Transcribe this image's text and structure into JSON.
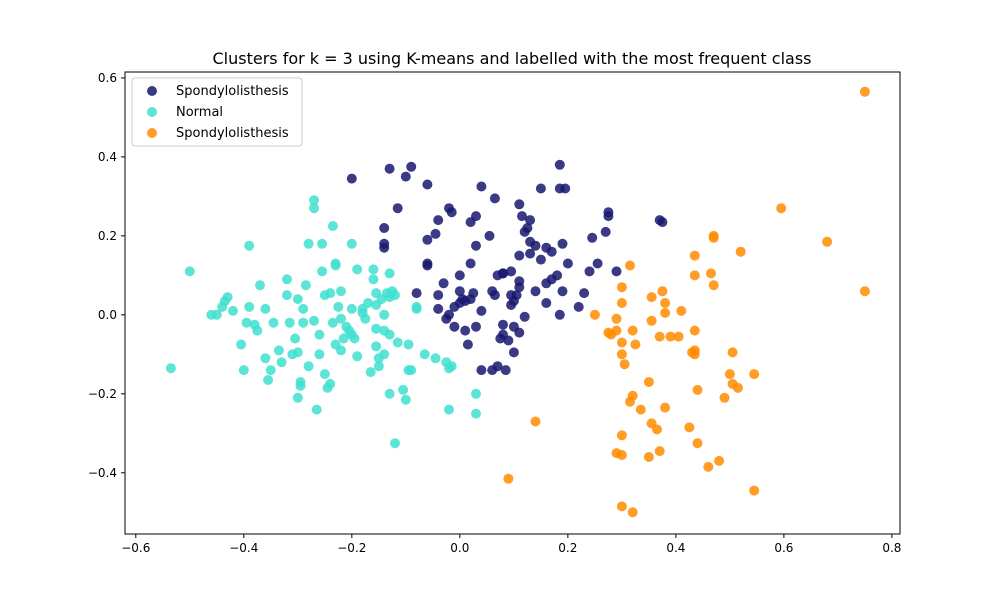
{
  "chart_data": {
    "type": "scatter",
    "title": "Clusters for k = 3 using K-means and labelled with the most frequent class",
    "xlabel": "",
    "ylabel": "",
    "xlim": [
      -0.6,
      0.8
    ],
    "ylim": [
      -0.5,
      0.6
    ],
    "xticks": [
      "−0.6",
      "−0.4",
      "−0.2",
      "0.0",
      "0.2",
      "0.4",
      "0.6",
      "0.8"
    ],
    "yticks": [
      "−0.4",
      "−0.2",
      "0.0",
      "0.2",
      "0.4",
      "0.6"
    ],
    "xtick_values": [
      -0.6,
      -0.4,
      -0.2,
      0.0,
      0.2,
      0.4,
      0.6,
      0.8
    ],
    "ytick_values": [
      -0.4,
      -0.2,
      0.0,
      0.2,
      0.4,
      0.6
    ],
    "grid": false,
    "legend_position": "top-left",
    "series": [
      {
        "name": "Spondylolisthesis",
        "color": "#191970",
        "points": [
          [
            -0.2,
            0.345
          ],
          [
            -0.13,
            0.37
          ],
          [
            -0.1,
            0.35
          ],
          [
            -0.09,
            0.375
          ],
          [
            -0.06,
            0.33
          ],
          [
            -0.14,
            0.22
          ],
          [
            -0.14,
            0.18
          ],
          [
            -0.14,
            0.17
          ],
          [
            -0.115,
            0.27
          ],
          [
            -0.06,
            0.19
          ],
          [
            -0.045,
            0.205
          ],
          [
            -0.04,
            0.24
          ],
          [
            -0.02,
            0.27
          ],
          [
            -0.015,
            0.26
          ],
          [
            -0.08,
            0.055
          ],
          [
            -0.06,
            0.125
          ],
          [
            -0.06,
            0.13
          ],
          [
            -0.04,
            0.05
          ],
          [
            -0.03,
            0.08
          ],
          [
            -0.04,
            0.015
          ],
          [
            -0.02,
            0.0
          ],
          [
            -0.025,
            -0.01
          ],
          [
            -0.01,
            0.02
          ],
          [
            0.0,
            0.03
          ],
          [
            0.0,
            0.06
          ],
          [
            0.0,
            0.1
          ],
          [
            0.005,
            0.04
          ],
          [
            0.01,
            0.035
          ],
          [
            0.02,
            0.04
          ],
          [
            0.025,
            0.055
          ],
          [
            0.02,
            0.13
          ],
          [
            0.03,
            0.175
          ],
          [
            0.02,
            0.235
          ],
          [
            0.03,
            0.25
          ],
          [
            0.04,
            0.325
          ],
          [
            0.065,
            0.295
          ],
          [
            0.055,
            0.2
          ],
          [
            0.06,
            0.06
          ],
          [
            0.07,
            0.1
          ],
          [
            0.08,
            0.105
          ],
          [
            0.065,
            0.05
          ],
          [
            0.08,
            0.105
          ],
          [
            0.095,
            0.11
          ],
          [
            0.03,
            -0.03
          ],
          [
            0.01,
            -0.04
          ],
          [
            -0.01,
            -0.03
          ],
          [
            0.015,
            -0.075
          ],
          [
            0.04,
            -0.14
          ],
          [
            0.07,
            -0.13
          ],
          [
            0.085,
            -0.14
          ],
          [
            0.06,
            -0.14
          ],
          [
            0.075,
            -0.06
          ],
          [
            0.09,
            -0.065
          ],
          [
            0.08,
            -0.025
          ],
          [
            0.1,
            -0.03
          ],
          [
            0.08,
            -0.05
          ],
          [
            0.1,
            -0.095
          ],
          [
            0.11,
            -0.045
          ],
          [
            0.12,
            -0.005
          ],
          [
            0.095,
            0.05
          ],
          [
            0.105,
            0.05
          ],
          [
            0.11,
            0.07
          ],
          [
            0.11,
            0.085
          ],
          [
            0.095,
            0.025
          ],
          [
            0.11,
            0.15
          ],
          [
            0.12,
            0.21
          ],
          [
            0.125,
            0.22
          ],
          [
            0.115,
            0.25
          ],
          [
            0.11,
            0.28
          ],
          [
            0.13,
            0.24
          ],
          [
            0.13,
            0.185
          ],
          [
            0.14,
            0.175
          ],
          [
            0.13,
            0.155
          ],
          [
            0.16,
            0.17
          ],
          [
            0.17,
            0.16
          ],
          [
            0.15,
            0.14
          ],
          [
            0.15,
            0.32
          ],
          [
            0.185,
            0.38
          ],
          [
            0.195,
            0.32
          ],
          [
            0.185,
            0.32
          ],
          [
            0.19,
            0.18
          ],
          [
            0.2,
            0.13
          ],
          [
            0.18,
            0.1
          ],
          [
            0.17,
            0.09
          ],
          [
            0.16,
            0.08
          ],
          [
            0.14,
            0.06
          ],
          [
            0.16,
            0.03
          ],
          [
            0.19,
            0.06
          ],
          [
            0.185,
            0.0
          ],
          [
            0.22,
            0.02
          ],
          [
            0.23,
            0.055
          ],
          [
            0.24,
            0.11
          ],
          [
            0.245,
            0.195
          ],
          [
            0.255,
            0.13
          ],
          [
            0.27,
            0.21
          ],
          [
            0.275,
            0.25
          ],
          [
            0.275,
            0.26
          ],
          [
            0.29,
            0.11
          ],
          [
            0.37,
            0.24
          ],
          [
            0.375,
            0.235
          ],
          [
            0.1,
            0.035
          ],
          [
            0.04,
            0.01
          ]
        ]
      },
      {
        "name": "Normal",
        "color": "#40e0d0",
        "points": [
          [
            -0.5,
            0.11
          ],
          [
            -0.535,
            -0.135
          ],
          [
            -0.46,
            0.0
          ],
          [
            -0.45,
            0.0
          ],
          [
            -0.44,
            0.02
          ],
          [
            -0.435,
            0.035
          ],
          [
            -0.43,
            0.045
          ],
          [
            -0.42,
            0.01
          ],
          [
            -0.405,
            -0.075
          ],
          [
            -0.4,
            -0.14
          ],
          [
            -0.395,
            -0.02
          ],
          [
            -0.39,
            0.02
          ],
          [
            -0.38,
            -0.025
          ],
          [
            -0.375,
            -0.04
          ],
          [
            -0.39,
            0.175
          ],
          [
            -0.37,
            0.075
          ],
          [
            -0.36,
            0.015
          ],
          [
            -0.36,
            -0.11
          ],
          [
            -0.355,
            -0.165
          ],
          [
            -0.35,
            -0.14
          ],
          [
            -0.345,
            -0.02
          ],
          [
            -0.335,
            -0.09
          ],
          [
            -0.33,
            -0.12
          ],
          [
            -0.32,
            0.05
          ],
          [
            -0.32,
            0.09
          ],
          [
            -0.315,
            -0.02
          ],
          [
            -0.31,
            -0.1
          ],
          [
            -0.305,
            -0.06
          ],
          [
            -0.3,
            0.04
          ],
          [
            -0.3,
            -0.095
          ],
          [
            -0.3,
            -0.21
          ],
          [
            -0.295,
            -0.17
          ],
          [
            -0.295,
            -0.18
          ],
          [
            -0.29,
            0.015
          ],
          [
            -0.29,
            -0.02
          ],
          [
            -0.285,
            0.075
          ],
          [
            -0.28,
            0.18
          ],
          [
            -0.28,
            -0.13
          ],
          [
            -0.27,
            0.27
          ],
          [
            -0.27,
            0.29
          ],
          [
            -0.27,
            -0.015
          ],
          [
            -0.265,
            -0.24
          ],
          [
            -0.26,
            -0.05
          ],
          [
            -0.26,
            -0.1
          ],
          [
            -0.255,
            0.11
          ],
          [
            -0.255,
            0.18
          ],
          [
            -0.25,
            0.05
          ],
          [
            -0.25,
            -0.15
          ],
          [
            -0.245,
            -0.185
          ],
          [
            -0.24,
            0.055
          ],
          [
            -0.24,
            -0.175
          ],
          [
            -0.235,
            0.225
          ],
          [
            -0.235,
            -0.02
          ],
          [
            -0.23,
            0.13
          ],
          [
            -0.23,
            0.125
          ],
          [
            -0.23,
            -0.075
          ],
          [
            -0.225,
            0.02
          ],
          [
            -0.22,
            0.06
          ],
          [
            -0.22,
            -0.01
          ],
          [
            -0.22,
            -0.09
          ],
          [
            -0.215,
            -0.06
          ],
          [
            -0.21,
            -0.03
          ],
          [
            -0.205,
            -0.04
          ],
          [
            -0.2,
            0.18
          ],
          [
            -0.2,
            0.015
          ],
          [
            -0.2,
            -0.05
          ],
          [
            -0.195,
            -0.06
          ],
          [
            -0.19,
            0.115
          ],
          [
            -0.19,
            -0.105
          ],
          [
            -0.18,
            0.005
          ],
          [
            -0.18,
            0.015
          ],
          [
            -0.175,
            -0.01
          ],
          [
            -0.17,
            0.03
          ],
          [
            -0.165,
            -0.145
          ],
          [
            -0.16,
            0.115
          ],
          [
            -0.16,
            0.09
          ],
          [
            -0.155,
            0.055
          ],
          [
            -0.155,
            0.025
          ],
          [
            -0.155,
            -0.035
          ],
          [
            -0.155,
            -0.08
          ],
          [
            -0.15,
            -0.11
          ],
          [
            -0.15,
            -0.13
          ],
          [
            -0.145,
            0.04
          ],
          [
            -0.14,
            0.0
          ],
          [
            -0.14,
            -0.04
          ],
          [
            -0.14,
            -0.1
          ],
          [
            -0.135,
            0.055
          ],
          [
            -0.13,
            0.105
          ],
          [
            -0.13,
            0.045
          ],
          [
            -0.13,
            -0.05
          ],
          [
            -0.13,
            -0.2
          ],
          [
            -0.125,
            0.06
          ],
          [
            -0.12,
            0.05
          ],
          [
            -0.12,
            -0.325
          ],
          [
            -0.115,
            -0.07
          ],
          [
            -0.105,
            -0.19
          ],
          [
            -0.1,
            -0.215
          ],
          [
            -0.095,
            -0.075
          ],
          [
            -0.09,
            -0.14
          ],
          [
            -0.08,
            0.015
          ],
          [
            -0.08,
            0.02
          ],
          [
            -0.065,
            -0.1
          ],
          [
            -0.045,
            -0.11
          ],
          [
            -0.025,
            -0.12
          ],
          [
            -0.02,
            -0.135
          ],
          [
            -0.02,
            -0.24
          ],
          [
            -0.015,
            -0.13
          ],
          [
            0.03,
            -0.2
          ],
          [
            0.03,
            -0.25
          ],
          [
            -0.095,
            -0.14
          ]
        ]
      },
      {
        "name": "Spondylolisthesis",
        "color": "#ff8c00",
        "points": [
          [
            0.75,
            0.565
          ],
          [
            0.75,
            0.06
          ],
          [
            0.68,
            0.185
          ],
          [
            0.595,
            0.27
          ],
          [
            0.52,
            0.16
          ],
          [
            0.505,
            -0.095
          ],
          [
            0.5,
            -0.15
          ],
          [
            0.505,
            -0.175
          ],
          [
            0.515,
            -0.185
          ],
          [
            0.545,
            -0.15
          ],
          [
            0.545,
            -0.445
          ],
          [
            0.49,
            -0.21
          ],
          [
            0.47,
            0.2
          ],
          [
            0.47,
            0.195
          ],
          [
            0.47,
            0.075
          ],
          [
            0.465,
            0.105
          ],
          [
            0.435,
            0.15
          ],
          [
            0.435,
            0.1
          ],
          [
            0.435,
            -0.04
          ],
          [
            0.435,
            -0.09
          ],
          [
            0.435,
            -0.1
          ],
          [
            0.43,
            -0.095
          ],
          [
            0.44,
            -0.19
          ],
          [
            0.44,
            -0.325
          ],
          [
            0.425,
            -0.285
          ],
          [
            0.46,
            -0.385
          ],
          [
            0.48,
            -0.37
          ],
          [
            0.41,
            0.01
          ],
          [
            0.405,
            -0.055
          ],
          [
            0.39,
            -0.055
          ],
          [
            0.38,
            0.03
          ],
          [
            0.375,
            0.06
          ],
          [
            0.38,
            0.005
          ],
          [
            0.37,
            -0.055
          ],
          [
            0.355,
            0.045
          ],
          [
            0.355,
            -0.015
          ],
          [
            0.35,
            -0.17
          ],
          [
            0.355,
            -0.275
          ],
          [
            0.365,
            -0.29
          ],
          [
            0.37,
            -0.345
          ],
          [
            0.35,
            -0.36
          ],
          [
            0.38,
            -0.235
          ],
          [
            0.335,
            -0.24
          ],
          [
            0.32,
            -0.205
          ],
          [
            0.315,
            -0.22
          ],
          [
            0.3,
            -0.305
          ],
          [
            0.3,
            -0.355
          ],
          [
            0.29,
            -0.35
          ],
          [
            0.3,
            -0.485
          ],
          [
            0.32,
            -0.5
          ],
          [
            0.32,
            -0.04
          ],
          [
            0.325,
            -0.075
          ],
          [
            0.3,
            -0.07
          ],
          [
            0.3,
            -0.1
          ],
          [
            0.305,
            -0.125
          ],
          [
            0.29,
            -0.01
          ],
          [
            0.29,
            -0.04
          ],
          [
            0.28,
            -0.05
          ],
          [
            0.275,
            -0.045
          ],
          [
            0.3,
            0.03
          ],
          [
            0.3,
            0.07
          ],
          [
            0.25,
            0.0
          ],
          [
            0.315,
            0.125
          ],
          [
            0.14,
            -0.27
          ],
          [
            0.09,
            -0.415
          ]
        ]
      }
    ]
  }
}
